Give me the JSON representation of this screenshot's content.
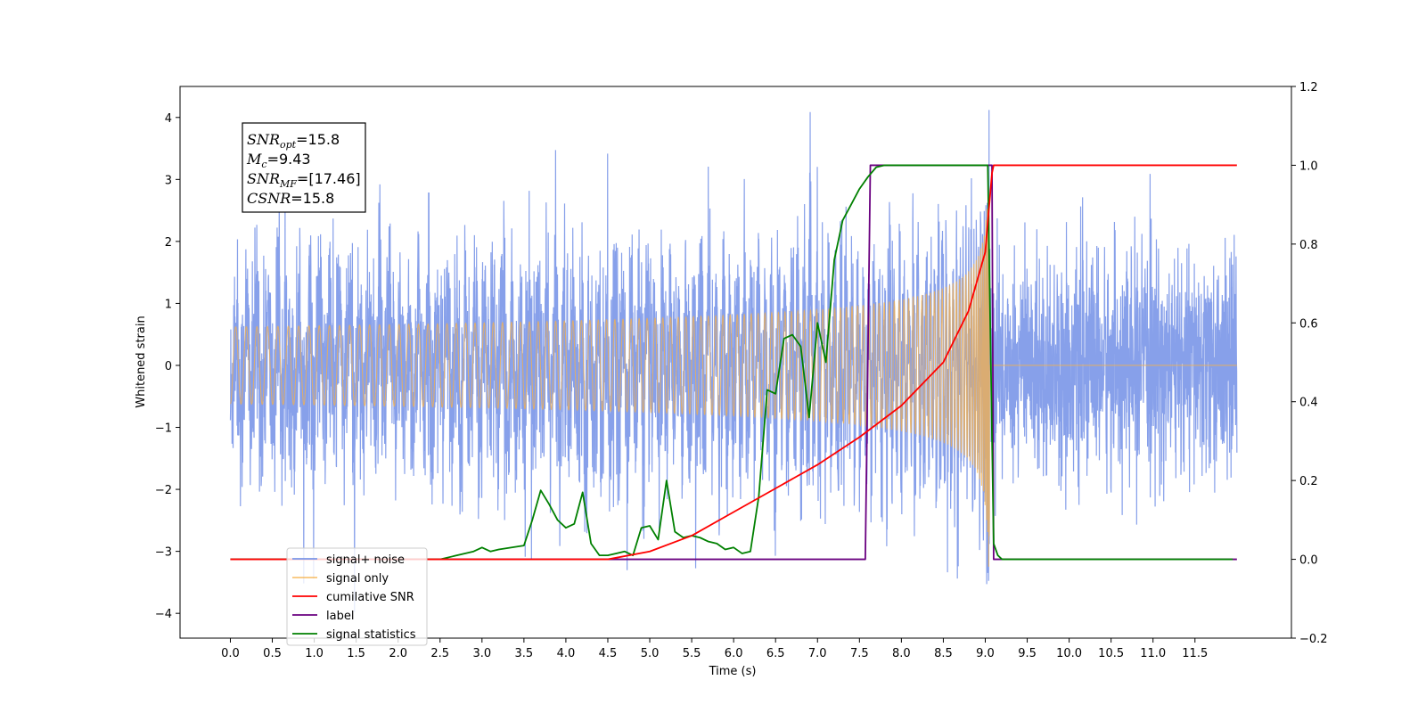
{
  "chart_data": {
    "type": "line",
    "title": "",
    "xlabel": "Time (s)",
    "ylabel": "Whitened strain",
    "xlim": [
      -0.6,
      12.65
    ],
    "ylim": [
      -4.4,
      4.5
    ],
    "ylim_right": [
      -0.2,
      1.2
    ],
    "xticks": [
      "0.0",
      "0.5",
      "1.0",
      "1.5",
      "2.0",
      "2.5",
      "3.0",
      "3.5",
      "4.0",
      "4.5",
      "5.0",
      "5.5",
      "6.0",
      "6.5",
      "7.0",
      "7.5",
      "8.0",
      "8.5",
      "9.0",
      "9.5",
      "10.0",
      "10.5",
      "11.0",
      "11.5"
    ],
    "yticks_left": [
      "−4",
      "−3",
      "−2",
      "−1",
      "0",
      "1",
      "2",
      "3",
      "4"
    ],
    "yticks_right": [
      "−0.2",
      "0.0",
      "0.2",
      "0.4",
      "0.6",
      "0.8",
      "1.0",
      "1.2"
    ],
    "annotation": [
      {
        "base": "SNR",
        "sub": "opt",
        "value": "=15.8"
      },
      {
        "base": "M",
        "sub": "c",
        "value": "=9.43"
      },
      {
        "base": "SNR",
        "sub": "MF",
        "value": "=[17.46]"
      },
      {
        "base": "CSNR",
        "sub": "",
        "value": "=15.8"
      }
    ],
    "legend_position": "lower-left",
    "series": [
      {
        "name": "signal+ noise",
        "axis": "left",
        "color": "#7a96e8",
        "description_values": {
          "x_start": 0.0,
          "x_end": 12.0,
          "noise_std": 0.85,
          "max_peak": 4.12,
          "min_peak": -3.98
        }
      },
      {
        "name": "signal only",
        "axis": "left",
        "color": "#f5b04a",
        "chirp": {
          "t_start": 0.0,
          "t_merger": 9.05,
          "amplitude_at_merger": 3.25
        }
      },
      {
        "name": "cumilative SNR",
        "axis": "right",
        "color": "#ff0000",
        "x": [
          0.0,
          4.5,
          5.0,
          5.5,
          6.0,
          6.5,
          7.0,
          7.5,
          8.0,
          8.5,
          8.8,
          9.0,
          9.08,
          9.1,
          12.0
        ],
        "y": [
          0.0,
          0.0,
          0.02,
          0.06,
          0.12,
          0.18,
          0.24,
          0.31,
          0.39,
          0.5,
          0.63,
          0.78,
          0.98,
          1.0,
          1.0
        ]
      },
      {
        "name": "label",
        "axis": "right",
        "color": "#6a0080",
        "x": [
          0.0,
          7.57,
          7.63,
          9.08,
          9.1,
          12.0
        ],
        "y": [
          0.0,
          0.0,
          1.0,
          1.0,
          0.0,
          0.0
        ]
      },
      {
        "name": "signal statistics",
        "axis": "right",
        "color": "#008000",
        "x": [
          0.0,
          2.5,
          2.9,
          3.0,
          3.1,
          3.2,
          3.5,
          3.6,
          3.7,
          3.8,
          3.9,
          4.0,
          4.1,
          4.2,
          4.3,
          4.4,
          4.5,
          4.6,
          4.7,
          4.8,
          4.9,
          5.0,
          5.1,
          5.2,
          5.3,
          5.4,
          5.5,
          5.6,
          5.7,
          5.8,
          5.9,
          6.0,
          6.1,
          6.2,
          6.3,
          6.4,
          6.5,
          6.6,
          6.7,
          6.8,
          6.9,
          7.0,
          7.1,
          7.2,
          7.3,
          7.4,
          7.5,
          7.6,
          7.7,
          7.8,
          7.9,
          8.0,
          9.03,
          9.1,
          9.15,
          9.2,
          11.95
        ],
        "y": [
          0.0,
          0.0,
          0.02,
          0.03,
          0.02,
          0.025,
          0.035,
          0.1,
          0.175,
          0.14,
          0.1,
          0.08,
          0.09,
          0.17,
          0.04,
          0.01,
          0.01,
          0.015,
          0.02,
          0.01,
          0.08,
          0.085,
          0.05,
          0.2,
          0.07,
          0.055,
          0.06,
          0.055,
          0.045,
          0.04,
          0.025,
          0.03,
          0.015,
          0.02,
          0.16,
          0.43,
          0.42,
          0.56,
          0.57,
          0.54,
          0.36,
          0.6,
          0.5,
          0.76,
          0.86,
          0.9,
          0.94,
          0.97,
          0.995,
          1.0,
          1.0,
          1.0,
          1.0,
          0.04,
          0.01,
          0.0,
          0.0
        ]
      }
    ]
  }
}
